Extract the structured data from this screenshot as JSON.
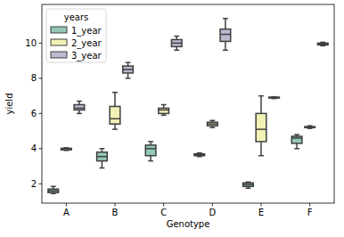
{
  "chart_data": {
    "type": "box",
    "x_label": "Genotype",
    "y_label": "yield",
    "categories": [
      "A",
      "B",
      "C",
      "D",
      "E",
      "F"
    ],
    "ylim": [
      0.9,
      12.2
    ],
    "yticks": [
      2,
      4,
      6,
      8,
      10
    ],
    "legend": "upper left",
    "legend_title": "years",
    "grid": false,
    "series": [
      {
        "name": "1_year",
        "color": "#94c7b8",
        "min": [
          1.45,
          2.9,
          3.3,
          3.55,
          1.75,
          4.0
        ],
        "q1": [
          1.5,
          3.3,
          3.6,
          3.6,
          1.85,
          4.3
        ],
        "median": [
          1.6,
          3.55,
          4.0,
          3.65,
          1.95,
          4.6
        ],
        "q3": [
          1.7,
          3.8,
          4.2,
          3.7,
          2.05,
          4.7
        ],
        "max": [
          1.85,
          4.0,
          4.4,
          3.75,
          2.1,
          4.8
        ]
      },
      {
        "name": "2_year",
        "color": "#f2f2b6",
        "min": [
          3.9,
          5.1,
          5.9,
          5.2,
          3.6,
          5.15
        ],
        "q1": [
          3.93,
          5.4,
          6.0,
          5.3,
          4.4,
          5.2
        ],
        "median": [
          4.0,
          5.7,
          6.2,
          5.4,
          5.1,
          5.22
        ],
        "q3": [
          4.02,
          6.4,
          6.3,
          5.5,
          6.0,
          5.25
        ],
        "max": [
          4.05,
          7.2,
          6.5,
          5.6,
          7.0,
          5.3
        ]
      },
      {
        "name": "3_year",
        "color": "#bcb9d0",
        "min": [
          6.0,
          8.0,
          9.6,
          9.6,
          6.85,
          9.85
        ],
        "q1": [
          6.2,
          8.3,
          9.8,
          10.1,
          6.88,
          9.9
        ],
        "median": [
          6.3,
          8.5,
          10.0,
          10.5,
          6.9,
          9.95
        ],
        "q3": [
          6.5,
          8.7,
          10.2,
          10.8,
          6.93,
          10.0
        ],
        "max": [
          6.7,
          8.9,
          10.4,
          11.4,
          6.95,
          10.05
        ]
      }
    ]
  }
}
